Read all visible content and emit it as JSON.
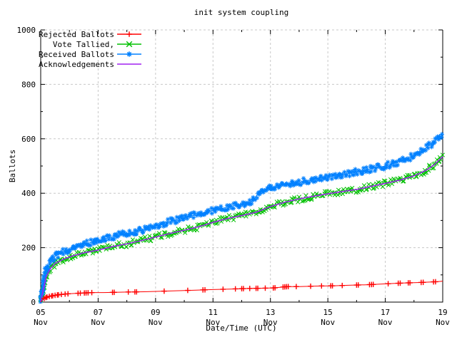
{
  "title": "init system coupling",
  "axes": {
    "ylabel": "Ballots",
    "xlabel": "Date/Time (UTC)",
    "ylim": [
      0,
      1000
    ],
    "xlim_days": [
      5,
      19
    ],
    "y_ticks": [
      {
        "value": 0,
        "label": "0"
      },
      {
        "value": 200,
        "label": "200"
      },
      {
        "value": 400,
        "label": "400"
      },
      {
        "value": 600,
        "label": "600"
      },
      {
        "value": 800,
        "label": "800"
      },
      {
        "value": 1000,
        "label": "1000"
      }
    ],
    "y_minor_values": [
      100,
      300,
      500,
      700,
      900
    ],
    "x_ticks": [
      {
        "day": 5,
        "label": "05",
        "sublabel": "Nov"
      },
      {
        "day": 7,
        "label": "07",
        "sublabel": "Nov"
      },
      {
        "day": 9,
        "label": "09",
        "sublabel": "Nov"
      },
      {
        "day": 11,
        "label": "11",
        "sublabel": "Nov"
      },
      {
        "day": 13,
        "label": "13",
        "sublabel": "Nov"
      },
      {
        "day": 15,
        "label": "15",
        "sublabel": "Nov"
      },
      {
        "day": 17,
        "label": "17",
        "sublabel": "Nov"
      },
      {
        "day": 19,
        "label": "19",
        "sublabel": "Nov"
      }
    ],
    "x_minor_days": [
      6,
      8,
      10,
      12,
      14,
      16,
      18
    ]
  },
  "colors": {
    "background": "#ffffff",
    "border": "#000000",
    "grid": "#c8c8c8",
    "text": "#000000",
    "rejected": "#ff0000",
    "tallied": "#00c000",
    "received": "#0080ff",
    "acknowledgements": "#a020f0"
  },
  "legend": {
    "position": "top-left",
    "entries": [
      {
        "label": "Rejected Ballots",
        "color": "#ff0000",
        "marker": "plus"
      },
      {
        "label": "Vote Tallied,",
        "color": "#00c000",
        "marker": "cross"
      },
      {
        "label": "Received Ballots",
        "color": "#0080ff",
        "marker": "star"
      },
      {
        "label": "Acknowledgements",
        "color": "#a020f0",
        "marker": "none"
      }
    ]
  },
  "chart_data": {
    "type": "line",
    "title": "init system coupling",
    "xlabel": "Date/Time (UTC)",
    "ylabel": "Ballots",
    "x_axis_unit": "day of November (UTC)",
    "x_range_days": [
      5,
      19
    ],
    "ylim": [
      0,
      1000
    ],
    "grid": true,
    "legend_position": "top-left",
    "series": [
      {
        "name": "Rejected Ballots",
        "color": "#ff0000",
        "marker": "plus",
        "style": "linespoints",
        "points": [
          [
            5,
            0
          ],
          [
            5.05,
            6
          ],
          [
            5.1,
            12
          ],
          [
            5.2,
            18
          ],
          [
            5.3,
            21
          ],
          [
            5.5,
            25
          ],
          [
            5.7,
            28
          ],
          [
            6.0,
            31
          ],
          [
            6.4,
            33
          ],
          [
            6.8,
            35
          ],
          [
            7.2,
            35
          ],
          [
            7.6,
            36
          ],
          [
            8.0,
            37
          ],
          [
            8.6,
            38
          ],
          [
            9.2,
            40
          ],
          [
            9.8,
            42
          ],
          [
            10.4,
            44
          ],
          [
            11.0,
            46
          ],
          [
            11.6,
            48
          ],
          [
            12.2,
            50
          ],
          [
            12.7,
            51
          ],
          [
            13.1,
            52
          ],
          [
            13.4,
            55
          ],
          [
            13.6,
            57
          ],
          [
            14.0,
            57
          ],
          [
            14.6,
            59
          ],
          [
            15.2,
            60
          ],
          [
            15.8,
            62
          ],
          [
            16.4,
            64
          ],
          [
            17.0,
            67
          ],
          [
            17.6,
            70
          ],
          [
            18.2,
            72
          ],
          [
            18.8,
            75
          ],
          [
            19.0,
            77
          ]
        ],
        "marker_days": [
          5.12,
          5.18,
          5.22,
          5.3,
          5.38,
          5.42,
          5.5,
          5.58,
          5.62,
          5.72,
          5.85,
          5.95,
          6.3,
          6.38,
          6.52,
          6.58,
          6.65,
          6.78,
          7.5,
          7.56,
          8.05,
          8.28,
          8.34,
          9.3,
          10.12,
          10.65,
          10.72,
          11.35,
          11.78,
          12.0,
          12.06,
          12.28,
          12.5,
          12.56,
          12.82,
          13.1,
          13.16,
          13.44,
          13.5,
          13.56,
          13.62,
          13.9,
          14.4,
          14.78,
          15.1,
          15.16,
          15.5,
          16.0,
          16.06,
          16.45,
          16.52,
          16.58,
          17.1,
          17.45,
          17.52,
          17.8,
          17.86,
          18.25,
          18.32,
          18.68,
          18.75
        ]
      },
      {
        "name": "Vote Tallied,",
        "color": "#00c000",
        "marker": "cross",
        "style": "dense-band",
        "points": [
          [
            5,
            0
          ],
          [
            5.04,
            15
          ],
          [
            5.08,
            40
          ],
          [
            5.12,
            65
          ],
          [
            5.18,
            90
          ],
          [
            5.25,
            108
          ],
          [
            5.35,
            125
          ],
          [
            5.5,
            141
          ],
          [
            5.7,
            153
          ],
          [
            5.9,
            161
          ],
          [
            6.1,
            169
          ],
          [
            6.3,
            176
          ],
          [
            6.5,
            181
          ],
          [
            6.8,
            186
          ],
          [
            7.0,
            191
          ],
          [
            7.3,
            199
          ],
          [
            7.6,
            206
          ],
          [
            8.0,
            214
          ],
          [
            8.5,
            226
          ],
          [
            9.0,
            239
          ],
          [
            9.5,
            252
          ],
          [
            10.0,
            264
          ],
          [
            10.5,
            277
          ],
          [
            11.0,
            294
          ],
          [
            11.5,
            308
          ],
          [
            12.0,
            318
          ],
          [
            12.3,
            324
          ],
          [
            12.6,
            333
          ],
          [
            12.8,
            341
          ],
          [
            13.0,
            352
          ],
          [
            13.4,
            365
          ],
          [
            14.0,
            379
          ],
          [
            14.5,
            389
          ],
          [
            15.0,
            398
          ],
          [
            15.5,
            406
          ],
          [
            16.0,
            414
          ],
          [
            16.5,
            425
          ],
          [
            17.0,
            437
          ],
          [
            17.4,
            447
          ],
          [
            17.8,
            458
          ],
          [
            18.1,
            468
          ],
          [
            18.4,
            484
          ],
          [
            18.7,
            505
          ],
          [
            18.9,
            522
          ],
          [
            19.0,
            537
          ]
        ]
      },
      {
        "name": "Received Ballots",
        "color": "#0080ff",
        "marker": "star",
        "style": "dense-band",
        "points": [
          [
            5,
            0
          ],
          [
            5.04,
            25
          ],
          [
            5.08,
            60
          ],
          [
            5.12,
            90
          ],
          [
            5.18,
            115
          ],
          [
            5.25,
            132
          ],
          [
            5.35,
            150
          ],
          [
            5.5,
            168
          ],
          [
            5.7,
            181
          ],
          [
            5.9,
            190
          ],
          [
            6.1,
            199
          ],
          [
            6.3,
            208
          ],
          [
            6.5,
            214
          ],
          [
            6.8,
            220
          ],
          [
            7.0,
            226
          ],
          [
            7.3,
            235
          ],
          [
            7.6,
            243
          ],
          [
            8.0,
            252
          ],
          [
            8.5,
            264
          ],
          [
            9.0,
            281
          ],
          [
            9.5,
            296
          ],
          [
            10.0,
            310
          ],
          [
            10.5,
            323
          ],
          [
            11.0,
            337
          ],
          [
            11.5,
            349
          ],
          [
            12.0,
            360
          ],
          [
            12.3,
            366
          ],
          [
            12.45,
            382
          ],
          [
            12.6,
            402
          ],
          [
            12.8,
            412
          ],
          [
            13.0,
            420
          ],
          [
            13.4,
            430
          ],
          [
            14.0,
            441
          ],
          [
            14.5,
            451
          ],
          [
            15.0,
            460
          ],
          [
            15.5,
            468
          ],
          [
            16.0,
            478
          ],
          [
            16.5,
            490
          ],
          [
            17.0,
            500
          ],
          [
            17.4,
            513
          ],
          [
            17.8,
            530
          ],
          [
            18.1,
            546
          ],
          [
            18.4,
            565
          ],
          [
            18.7,
            590
          ],
          [
            18.9,
            610
          ],
          [
            19.0,
            622
          ]
        ]
      },
      {
        "name": "Acknowledgements",
        "color": "#a020f0",
        "marker": "none",
        "style": "line",
        "points": [
          [
            5,
            0
          ],
          [
            5.1,
            50
          ],
          [
            5.2,
            95
          ],
          [
            5.35,
            125
          ],
          [
            5.5,
            142
          ],
          [
            5.8,
            158
          ],
          [
            6.1,
            169
          ],
          [
            6.5,
            181
          ],
          [
            7.0,
            191
          ],
          [
            7.5,
            204
          ],
          [
            8.0,
            214
          ],
          [
            8.5,
            226
          ],
          [
            9.0,
            239
          ],
          [
            9.5,
            252
          ],
          [
            10.0,
            264
          ],
          [
            10.5,
            277
          ],
          [
            11.0,
            293
          ],
          [
            11.5,
            307
          ],
          [
            12.0,
            318
          ],
          [
            12.5,
            330
          ],
          [
            13.0,
            351
          ],
          [
            13.5,
            367
          ],
          [
            14.0,
            379
          ],
          [
            14.5,
            389
          ],
          [
            15.0,
            398
          ],
          [
            15.5,
            406
          ],
          [
            16.0,
            414
          ],
          [
            16.5,
            425
          ],
          [
            17.0,
            436
          ],
          [
            17.5,
            448
          ],
          [
            18.0,
            464
          ],
          [
            18.4,
            483
          ],
          [
            18.7,
            504
          ],
          [
            19.0,
            535
          ]
        ]
      }
    ]
  }
}
